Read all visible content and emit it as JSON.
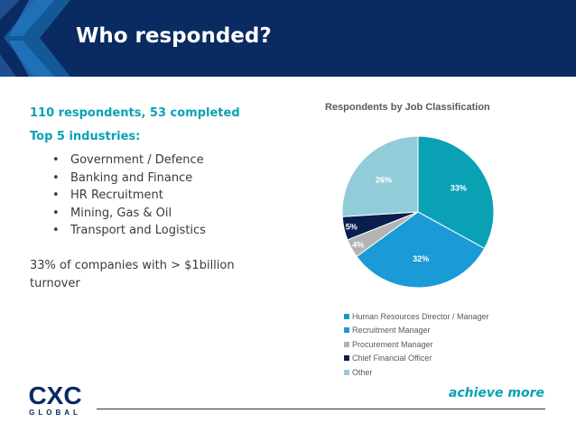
{
  "slide": {
    "title": "Who responded?",
    "summary": "110 respondents, 53 completed",
    "industries_heading": "Top 5 industries:",
    "industries": [
      "Government / Defence",
      "Banking and Finance",
      "HR Recruitment",
      "Mining, Gas & Oil",
      "Transport and Logistics"
    ],
    "stat": "33% of companies with > $1billion turnover",
    "tagline": "achieve more",
    "logo_text": "CXC",
    "logo_subtext": "GLOBAL"
  },
  "colors": {
    "header_bg": "#0a2a62",
    "accent": "#0aa1b5"
  },
  "chart_data": {
    "type": "pie",
    "title": "Respondents by Job Classification",
    "labels": [
      "Human Resources Director / Manager",
      "Recruitment Manager",
      "Procurement Manager",
      "Chief Financial Officer",
      "Other"
    ],
    "values": [
      33,
      32,
      4,
      5,
      26
    ],
    "value_labels": [
      "33%",
      "32%",
      "4%",
      "5%",
      "26%"
    ],
    "colors": [
      "#0aa1b5",
      "#1a9bd7",
      "#b3b3b3",
      "#0a1f4f",
      "#93ccd9"
    ],
    "legend": "bottom"
  }
}
